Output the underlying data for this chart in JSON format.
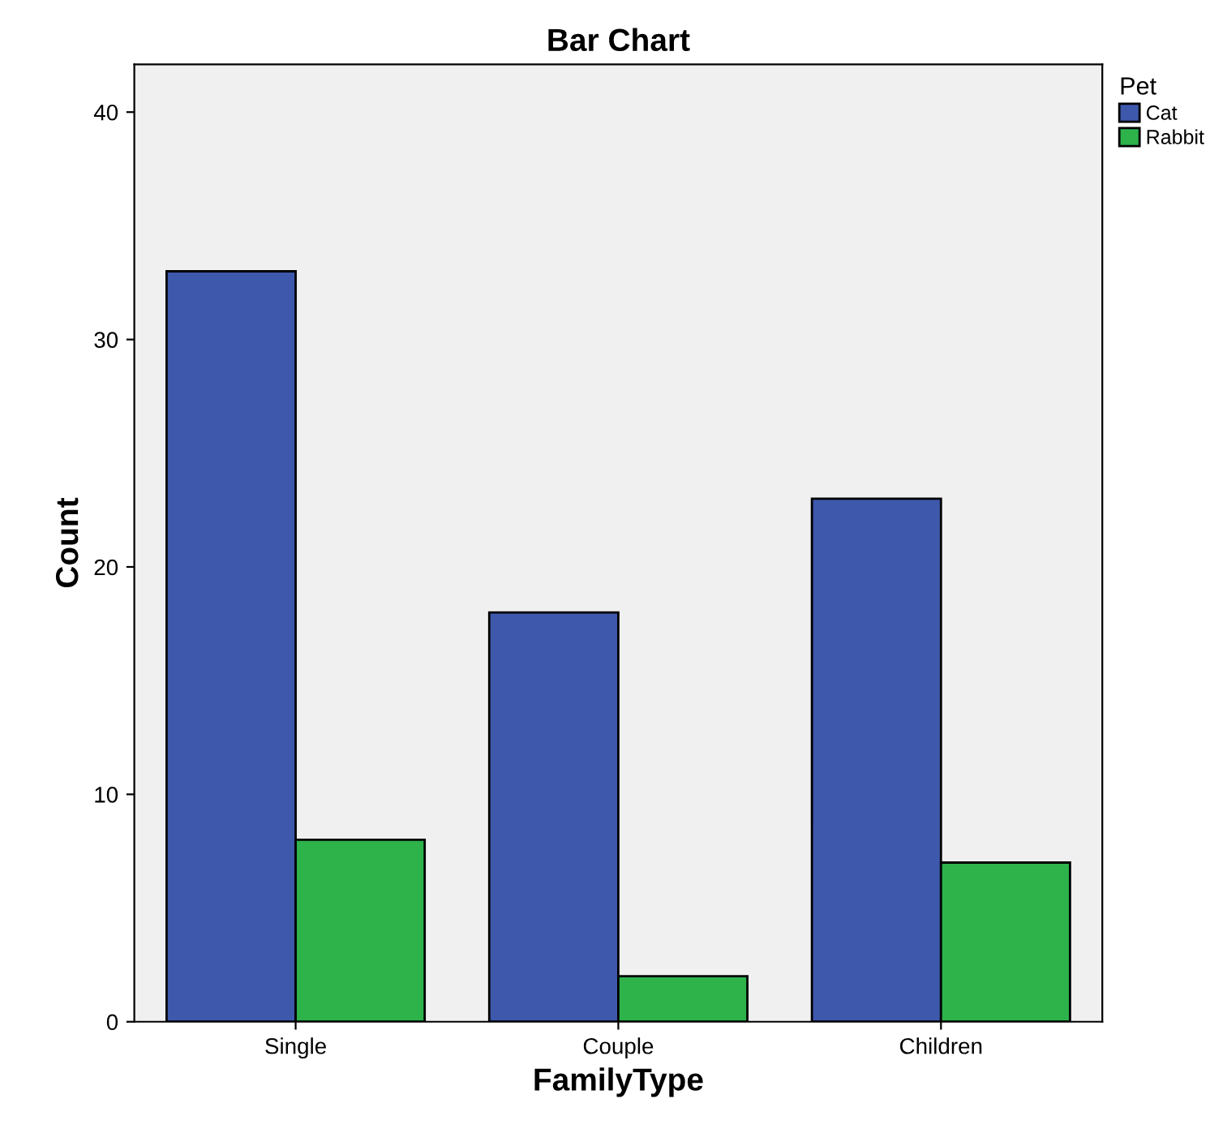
{
  "chart_data": {
    "type": "bar",
    "title": "Bar Chart",
    "xlabel": "FamilyType",
    "ylabel": "Count",
    "legend_title": "Pet",
    "categories": [
      "Single",
      "Couple",
      "Children"
    ],
    "series": [
      {
        "name": "Cat",
        "color": "#3e58ac",
        "values": [
          33,
          18,
          23
        ]
      },
      {
        "name": "Rabbit",
        "color": "#2db34a",
        "values": [
          8,
          2,
          7
        ]
      }
    ],
    "ylim": [
      0,
      42.1
    ],
    "yticks": [
      0,
      10,
      20,
      30,
      40
    ],
    "grid": false,
    "legend": "top right"
  }
}
